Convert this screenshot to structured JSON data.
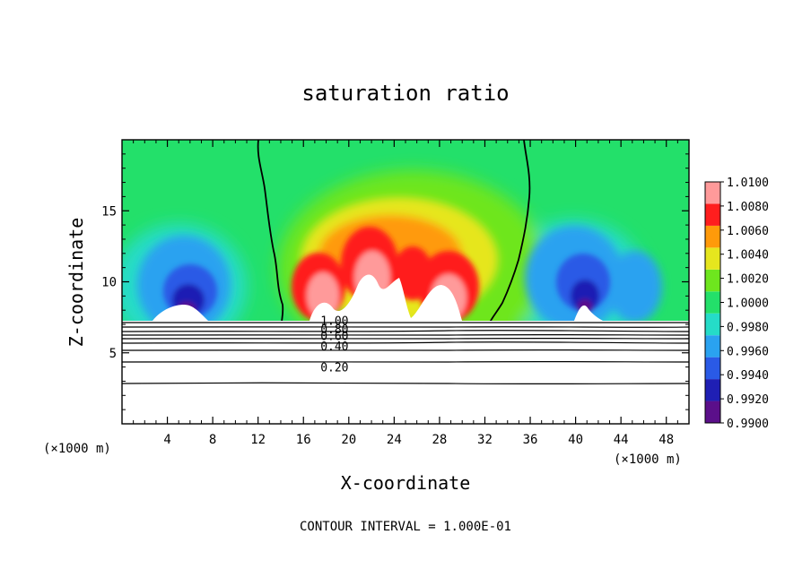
{
  "chart_data": {
    "type": "heatmap",
    "title": "saturation ratio",
    "xlabel": "X-coordinate",
    "ylabel": "Z-coordinate",
    "x_unit_label": "(×1000 m)",
    "xlim": [
      0,
      50
    ],
    "ylim": [
      0,
      20
    ],
    "x_ticks": [
      4,
      8,
      12,
      16,
      20,
      24,
      28,
      32,
      36,
      40,
      44,
      48
    ],
    "y_ticks": [
      5,
      10,
      15
    ],
    "colorbar": {
      "levels": [
        0.99,
        0.992,
        0.994,
        0.996,
        0.998,
        1.0,
        1.002,
        1.004,
        1.006,
        1.008,
        1.01
      ],
      "labels": [
        "0.9900",
        "0.9920",
        "0.9940",
        "0.9960",
        "0.9980",
        "1.0000",
        "1.0020",
        "1.0040",
        "1.0060",
        "1.0080",
        "1.0100"
      ],
      "colors": [
        "#5b0f8a",
        "#1f1fb4",
        "#2a5ae6",
        "#2aa2f0",
        "#25dcc8",
        "#23e06a",
        "#6ee61e",
        "#e6e61e",
        "#ff9a0a",
        "#ff1e1e",
        "#ff9a9a"
      ]
    },
    "surface_level_km": 7.2,
    "features": [
      {
        "name": "dry-left",
        "x": 6,
        "z": 9.5,
        "value": 0.9915
      },
      {
        "name": "dry-right",
        "x": 41,
        "z": 10,
        "value": 0.9915
      },
      {
        "name": "moist-center",
        "x": 22,
        "z": 11,
        "value": 1.0065
      }
    ],
    "contour_lines": {
      "levels": [
        0.1,
        0.2,
        0.3,
        0.4,
        0.5,
        0.6,
        0.7,
        0.8,
        0.9,
        1.0
      ],
      "labels": [
        {
          "text": "0.20",
          "x": 17.5,
          "z": 4.0
        },
        {
          "text": "0.40",
          "x": 17.5,
          "z": 5.5
        },
        {
          "text": "0.60",
          "x": 17.5,
          "z": 6.2
        },
        {
          "text": "0.80",
          "x": 17.5,
          "z": 6.7
        },
        {
          "text": "1.00",
          "x": 17.5,
          "z": 7.3
        }
      ]
    },
    "footer": "CONTOUR INTERVAL = 1.000E-01"
  }
}
